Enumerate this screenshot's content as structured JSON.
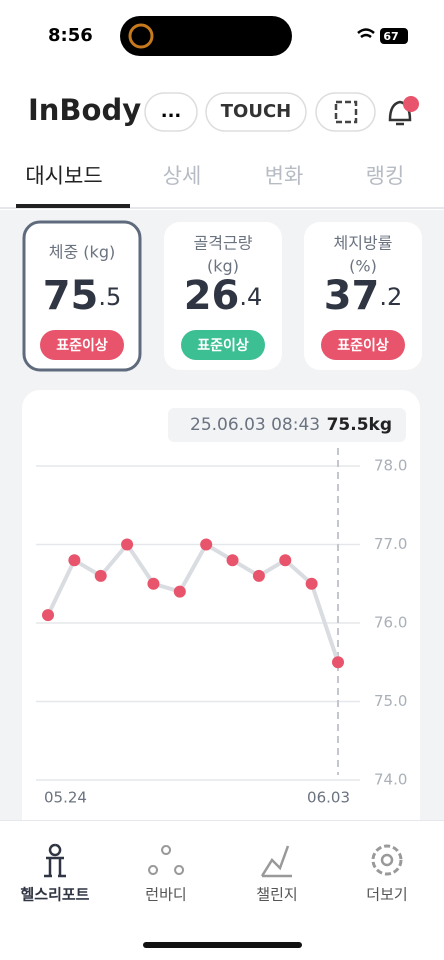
{
  "status": {
    "time": "8:56",
    "battery": "67"
  },
  "header": {
    "logo": "InBody",
    "more": "...",
    "touch": "TOUCH"
  },
  "tabs": [
    "대시보드",
    "상세",
    "변화",
    "랭킹"
  ],
  "cards": [
    {
      "label": [
        "체중 (kg)"
      ],
      "int": "75",
      "dec": ".5",
      "status": "표준이상",
      "status_color": "#e8546b"
    },
    {
      "label": [
        "골격근량",
        "(kg)"
      ],
      "int": "26",
      "dec": ".4",
      "status": "표준이상",
      "status_color": "#3dbf94"
    },
    {
      "label": [
        "체지방률",
        "(%)"
      ],
      "int": "37",
      "dec": ".2",
      "status": "표준이상",
      "status_color": "#e8546b"
    }
  ],
  "chart_data": {
    "type": "line",
    "tooltip": {
      "date": "25.06.03 08:43",
      "value": "75.5kg"
    },
    "categories": [
      "05.24",
      null,
      null,
      null,
      null,
      null,
      null,
      null,
      null,
      null,
      null,
      "06.03"
    ],
    "series": [
      {
        "name": null,
        "color": "#e8546b",
        "values": [
          76.1,
          76.8,
          76.6,
          77.0,
          76.5,
          76.4,
          77.0,
          76.8,
          76.6,
          76.8,
          76.5,
          75.5
        ]
      }
    ],
    "ylim": [
      74,
      78
    ],
    "yticks": [
      {
        "value": 74,
        "label": "74.0"
      },
      {
        "value": 75,
        "label": "75.0"
      },
      {
        "value": 76,
        "label": "76.0"
      },
      {
        "value": 77,
        "label": "77.0"
      },
      {
        "value": 78,
        "label": "78.0"
      }
    ],
    "grid": true
  },
  "nav": [
    "헬스리포트",
    "런바디",
    "챌린지",
    "더보기"
  ]
}
